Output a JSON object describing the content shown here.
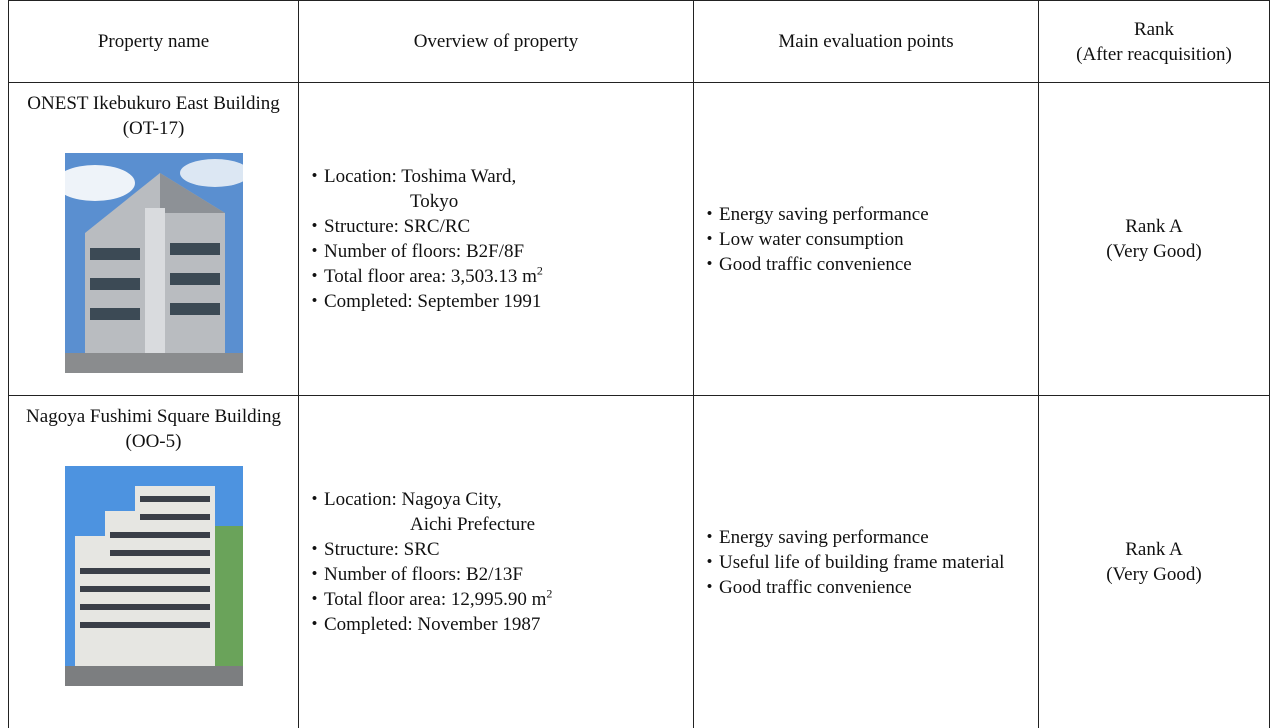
{
  "header": [
    [
      "Property name"
    ],
    [
      "Overview of property"
    ],
    [
      "Main evaluation points"
    ],
    [
      "Rank",
      "(After reacquisition)"
    ]
  ],
  "rows": [
    {
      "name": "ONEST Ikebukuro East Building (OT-17)",
      "overview": [
        [
          "・Location: Toshima Ward,",
          "Tokyo"
        ],
        "・Structure: SRC/RC",
        "・Number of floors: B2F/8F",
        {
          "text": "・Total floor area: 3,503.13 m",
          "sup": "2"
        },
        "・Completed: September 1991"
      ],
      "points": [
        "・Energy saving performance",
        "・Low water consumption",
        "・Good traffic convenience"
      ],
      "rank": [
        "Rank A",
        "(Very Good)"
      ]
    },
    {
      "name": "Nagoya Fushimi Square Building (OO-5)",
      "overview": [
        [
          "・Location: Nagoya City,",
          "Aichi Prefecture"
        ],
        "・Structure: SRC",
        "・Number of floors: B2/13F",
        {
          "text": "・Total floor area: 12,995.90 m",
          "sup": "2"
        },
        "・Completed: November 1987"
      ],
      "points": [
        "・Energy saving performance",
        "・Useful life of building frame material",
        "・Good traffic convenience"
      ],
      "rank": [
        "Rank A",
        "(Very Good)"
      ]
    }
  ]
}
